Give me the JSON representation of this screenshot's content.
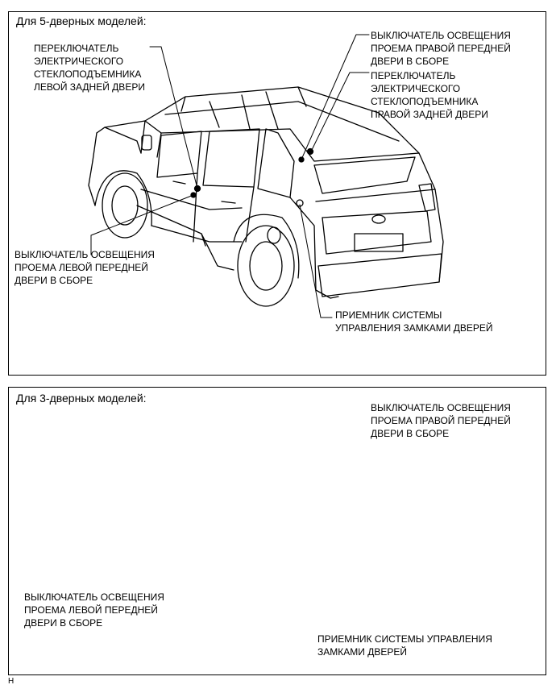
{
  "panels": [
    {
      "title": "Для 5-дверных моделей:",
      "labels": {
        "rr_window_sw": "ПЕРЕКЛЮЧАТЕЛЬ\nЭЛЕКТРИЧЕСКОГО\nСТЕКЛОПОДЪЕМНИКА\nЛЕВОЙ ЗАДНЕЙ ДВЕРИ",
        "fr_door_sw": "ВЫКЛЮЧАТЕЛЬ ОСВЕЩЕНИЯ\nПРОЕМА ПРАВОЙ ПЕРЕДНЕЙ\nДВЕРИ В СБОРЕ",
        "rr_window_sw_right": "ПЕРЕКЛЮЧАТЕЛЬ\nЭЛЕКТРИЧЕСКОГО\nСТЕКЛОПОДЪЕМНИКА\nПРАВОЙ ЗАДНЕЙ ДВЕРИ",
        "fl_door_sw": "ВЫКЛЮЧАТЕЛЬ ОСВЕЩЕНИЯ\nПРОЕМА ЛЕВОЙ ПЕРЕДНЕЙ\nДВЕРИ В СБОРЕ",
        "lock_receiver": "ПРИЕМНИК СИСТЕМЫ\nУПРАВЛЕНИЯ ЗАМКАМИ ДВЕРЕЙ"
      }
    },
    {
      "title": "Для 3-дверных моделей:",
      "labels": {
        "fr_door_sw": "ВЫКЛЮЧАТЕЛЬ ОСВЕЩЕНИЯ\nПРОЕМА ПРАВОЙ ПЕРЕДНЕЙ\nДВЕРИ В СБОРЕ",
        "fl_door_sw": "ВЫКЛЮЧАТЕЛЬ ОСВЕЩЕНИЯ\nПРОЕМА ЛЕВОЙ ПЕРЕДНЕЙ\nДВЕРИ В СБОРЕ",
        "lock_receiver": "ПРИЕМНИК СИСТЕМЫ УПРАВЛЕНИЯ\nЗАМКАМИ ДВЕРЕЙ"
      }
    }
  ],
  "corner_mark": "H"
}
